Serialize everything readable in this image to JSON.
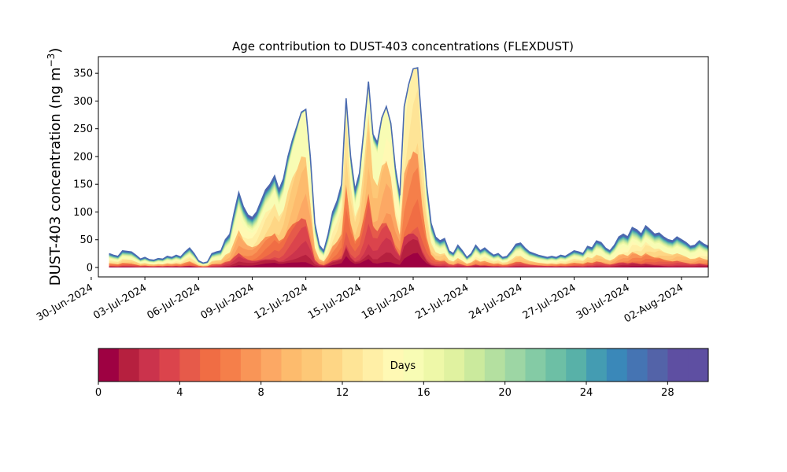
{
  "chart_data": {
    "type": "area",
    "title": "Age contribution to DUST-403 concentrations (FLEXDUST)",
    "ylabel_main": "DUST-403 concentration (ng m",
    "ylabel_exp": "−3",
    "ylabel_close": ")",
    "xlabel": "",
    "ylim": [
      -17,
      380
    ],
    "yticks": [
      0,
      50,
      100,
      150,
      200,
      250,
      300,
      350
    ],
    "xlim_days": [
      -0.6,
      33.5
    ],
    "xticks": [
      "30-Jun-2024",
      "03-Jul-2024",
      "06-Jul-2024",
      "09-Jul-2024",
      "12-Jul-2024",
      "15-Jul-2024",
      "18-Jul-2024",
      "21-Jul-2024",
      "24-Jul-2024",
      "27-Jul-2024",
      "30-Jul-2024",
      "02-Aug-2024"
    ],
    "x_start_label": "01-Jul-2024",
    "x_step_days": 0.25,
    "total_series": {
      "name": "total",
      "values": [
        25,
        22,
        20,
        30,
        29,
        28,
        22,
        15,
        18,
        14,
        13,
        16,
        15,
        20,
        18,
        22,
        19,
        28,
        35,
        25,
        12,
        8,
        10,
        25,
        28,
        30,
        50,
        60,
        100,
        135,
        110,
        95,
        90,
        100,
        120,
        140,
        150,
        165,
        140,
        160,
        200,
        230,
        255,
        280,
        285,
        200,
        80,
        40,
        30,
        60,
        100,
        120,
        150,
        305,
        200,
        140,
        170,
        250,
        335,
        240,
        225,
        270,
        290,
        260,
        180,
        130,
        290,
        330,
        358,
        360,
        250,
        150,
        80,
        55,
        48,
        52,
        30,
        25,
        40,
        30,
        18,
        25,
        40,
        30,
        35,
        28,
        22,
        25,
        18,
        20,
        30,
        42,
        44,
        35,
        28,
        25,
        22,
        20,
        18,
        20,
        18,
        22,
        20,
        25,
        30,
        28,
        25,
        38,
        35,
        48,
        45,
        35,
        30,
        40,
        55,
        60,
        55,
        72,
        68,
        60,
        75,
        68,
        60,
        62,
        55,
        50,
        48,
        55,
        50,
        45,
        38,
        40,
        48,
        42,
        38,
        35,
        30,
        32,
        35,
        40,
        48,
        52,
        55,
        52,
        58,
        45,
        38,
        32,
        30,
        28,
        25,
        20,
        15,
        12,
        10,
        10,
        12,
        12,
        15,
        15,
        14,
        16,
        20,
        22,
        20,
        18,
        15,
        16,
        15,
        14,
        18,
        15,
        14,
        20,
        32,
        18,
        16,
        15,
        17,
        19,
        20,
        18,
        17,
        19,
        18,
        17,
        16,
        18,
        17,
        16,
        15,
        13,
        14,
        20,
        25,
        15,
        18,
        30,
        40,
        48,
        38,
        28,
        22,
        24,
        28,
        30,
        26,
        25,
        24,
        25,
        27,
        28,
        26,
        30,
        38,
        50,
        68,
        66,
        50,
        35,
        28,
        25,
        24,
        25,
        23,
        24,
        24
      ],
      "visual_extra": [
        0,
        0,
        0,
        0,
        0,
        0,
        0,
        0,
        0,
        0,
        0,
        0,
        0,
        0,
        0,
        0,
        0,
        0,
        0,
        0,
        0,
        0,
        0,
        0,
        0,
        0,
        0,
        0,
        0,
        0,
        0,
        0,
        0,
        0,
        0,
        0,
        0,
        0,
        0,
        0,
        0,
        0,
        0,
        0,
        0,
        0,
        0,
        0,
        0,
        0,
        0,
        0,
        0,
        0,
        0,
        0,
        0,
        0,
        0,
        0,
        0,
        0,
        0,
        0,
        0,
        0,
        0,
        0,
        0,
        0,
        0,
        0,
        0,
        0,
        0,
        0,
        0,
        0,
        0,
        0,
        0,
        0,
        0,
        0,
        0,
        0,
        0,
        0,
        0,
        0,
        0,
        0,
        0,
        0,
        0,
        0,
        0,
        0,
        0,
        0,
        0,
        0,
        0,
        0,
        0,
        0,
        0,
        0,
        0,
        0,
        0,
        0,
        0,
        0,
        0,
        0,
        0,
        0,
        0,
        0,
        0,
        0,
        0,
        0,
        0,
        0,
        0,
        0,
        0,
        0,
        0,
        0,
        0,
        0,
        0,
        0,
        0,
        0,
        0,
        0,
        0,
        0,
        0,
        0,
        0,
        0,
        0,
        0,
        0,
        0,
        0,
        0,
        0,
        0,
        0,
        0,
        0,
        0,
        0,
        0,
        0,
        0,
        0,
        0,
        0,
        0,
        0,
        0,
        0,
        0,
        0,
        0,
        0,
        0,
        0,
        0,
        0,
        0,
        0,
        0,
        0,
        0,
        0,
        0,
        0,
        0,
        0,
        0,
        0,
        0,
        0,
        0,
        0,
        0,
        0,
        0,
        0,
        0,
        0,
        0,
        0,
        0,
        0,
        0,
        0,
        0,
        0,
        0,
        0,
        0,
        0,
        0,
        0,
        0,
        0,
        0,
        0,
        0,
        0
      ]
    },
    "age_bins_days": 30,
    "colorbar": {
      "label": "Days",
      "ticks": [
        0,
        4,
        8,
        12,
        16,
        20,
        24,
        28
      ],
      "range": [
        0,
        30
      ],
      "colors": [
        "#9e0142",
        "#b6203f",
        "#cb334c",
        "#db444c",
        "#e65a4a",
        "#f06d44",
        "#f57f4a",
        "#f99557",
        "#fca864",
        "#fdbb6d",
        "#fdc877",
        "#fed685",
        "#fee496",
        "#ffefa6",
        "#fff9b4",
        "#f8fcb4",
        "#eef8a8",
        "#e0f2a0",
        "#cbea9d",
        "#b4e0a0",
        "#9dd6a4",
        "#84cba5",
        "#6dbfa5",
        "#58b1a8",
        "#449cb2",
        "#3a88b9",
        "#4574b3",
        "#5363a8",
        "#5e4fa2",
        "#5e4fa2"
      ]
    }
  }
}
